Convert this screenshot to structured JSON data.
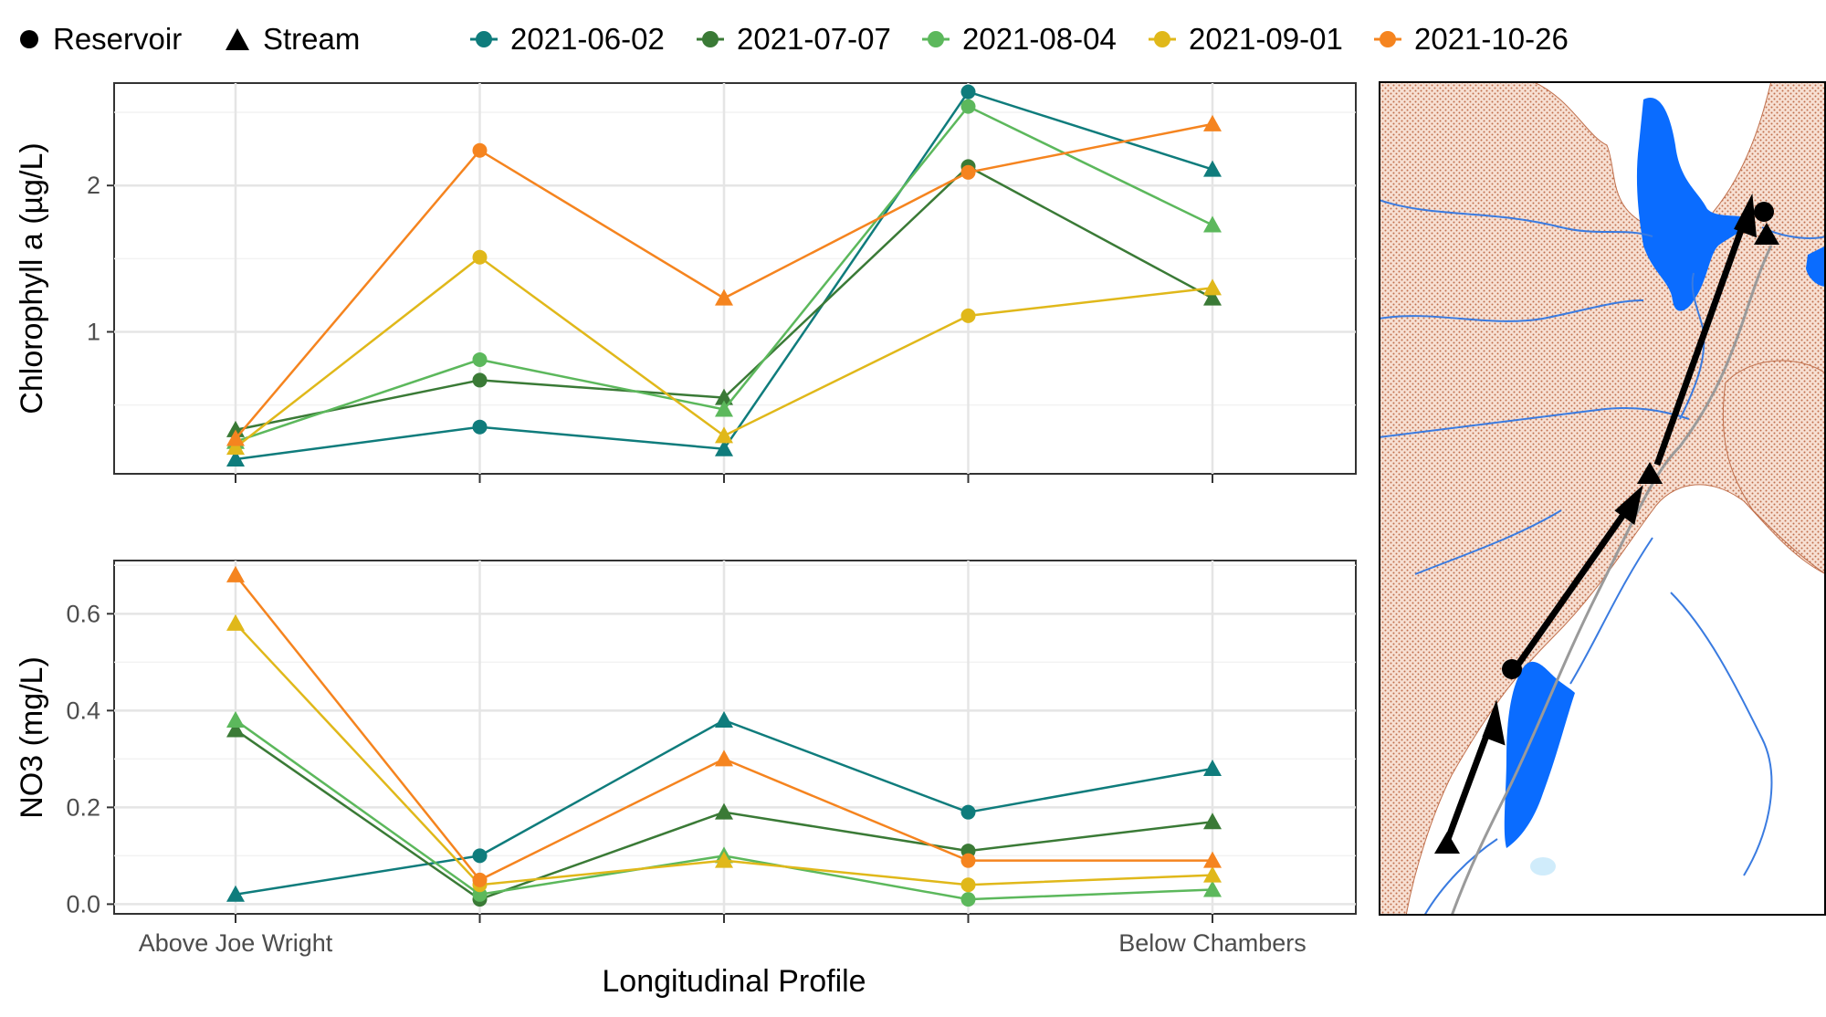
{
  "legend": {
    "shapes": [
      {
        "label": "Reservoir",
        "symbol": "circle"
      },
      {
        "label": "Stream",
        "symbol": "triangle"
      }
    ],
    "dates": [
      "2021-06-02",
      "2021-07-07",
      "2021-08-04",
      "2021-09-01",
      "2021-10-26"
    ]
  },
  "colors": {
    "2021-06-02": "#0f7c7c",
    "2021-07-07": "#3a7a36",
    "2021-08-04": "#5cb85c",
    "2021-09-01": "#e0b81a",
    "2021-10-26": "#f5841f"
  },
  "chart_data": [
    {
      "type": "line",
      "ylabel": "Chlorophyll a (µg/L)",
      "xlabel": "",
      "positions": [
        1,
        2,
        3,
        4,
        5
      ],
      "y_ticks": [
        1,
        2
      ],
      "ylim": [
        0.03,
        2.7
      ],
      "marker_shapes": [
        "triangle",
        "circle",
        "triangle",
        "circle",
        "triangle"
      ],
      "series": [
        {
          "name": "2021-06-02",
          "values": [
            0.13,
            0.35,
            0.2,
            2.64,
            2.11
          ]
        },
        {
          "name": "2021-07-07",
          "values": [
            0.33,
            0.67,
            0.55,
            2.13,
            1.23
          ]
        },
        {
          "name": "2021-08-04",
          "values": [
            0.25,
            0.81,
            0.47,
            2.54,
            1.73
          ]
        },
        {
          "name": "2021-09-01",
          "values": [
            0.21,
            1.51,
            0.29,
            1.11,
            1.3
          ]
        },
        {
          "name": "2021-10-26",
          "values": [
            0.27,
            2.24,
            1.23,
            2.09,
            2.42
          ]
        }
      ]
    },
    {
      "type": "line",
      "ylabel": "NO3 (mg/L)",
      "xlabel": "Longitudinal Profile",
      "positions": [
        1,
        2,
        3,
        4,
        5
      ],
      "x_tick_labels": [
        "Above Joe Wright",
        "",
        "",
        "",
        "Below Chambers"
      ],
      "y_ticks": [
        0.0,
        0.2,
        0.4,
        0.6
      ],
      "ylim": [
        -0.02,
        0.71
      ],
      "marker_shapes": [
        "triangle",
        "circle",
        "triangle",
        "circle",
        "triangle"
      ],
      "series": [
        {
          "name": "2021-06-02",
          "values": [
            0.02,
            0.1,
            0.38,
            0.19,
            0.28
          ]
        },
        {
          "name": "2021-07-07",
          "values": [
            0.36,
            0.01,
            0.19,
            0.11,
            0.17
          ]
        },
        {
          "name": "2021-08-04",
          "values": [
            0.38,
            0.02,
            0.1,
            0.01,
            0.03
          ]
        },
        {
          "name": "2021-09-01",
          "values": [
            0.58,
            0.04,
            0.09,
            0.04,
            0.06
          ]
        },
        {
          "name": "2021-10-26",
          "values": [
            0.68,
            0.05,
            0.3,
            0.09,
            0.09
          ]
        }
      ]
    }
  ]
}
